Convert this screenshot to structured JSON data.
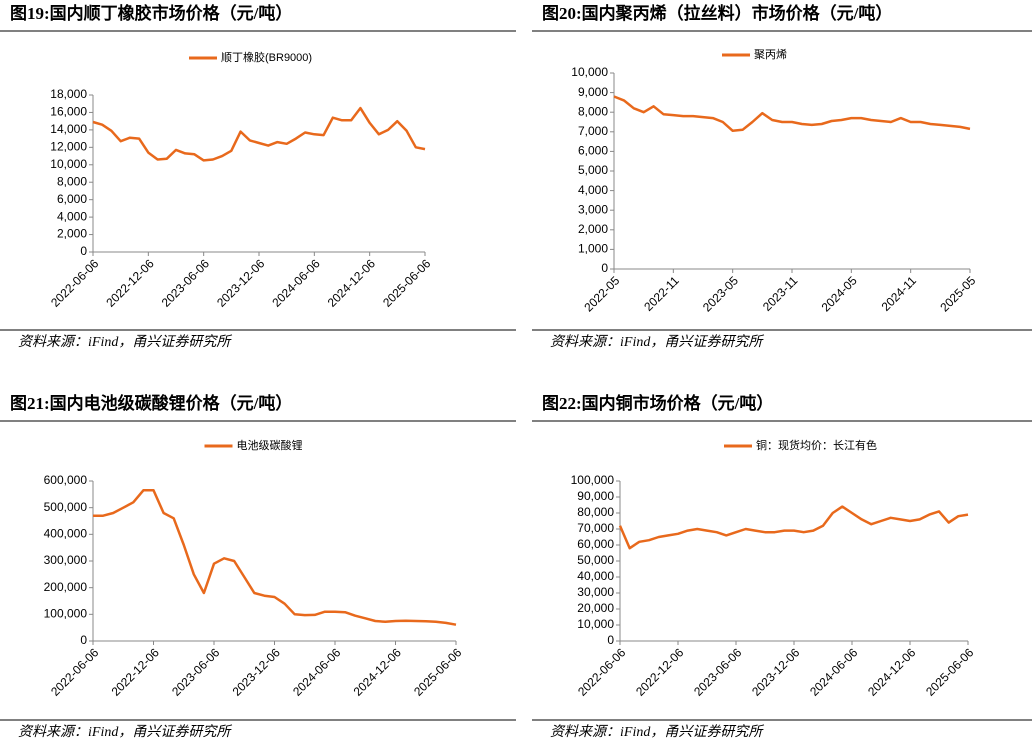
{
  "chart_data": [
    {
      "type": "line",
      "title": "图19:国内顺丁橡胶市场价格（元/吨）",
      "source": "资料来源：iFind，甬兴证券研究所",
      "categories": [
        "2022-06-06",
        null,
        null,
        null,
        null,
        null,
        "2022-12-06",
        null,
        null,
        null,
        null,
        null,
        "2023-06-06",
        null,
        null,
        null,
        null,
        null,
        "2023-12-06",
        null,
        null,
        null,
        null,
        null,
        "2024-06-06",
        null,
        null,
        null,
        null,
        null,
        "2024-12-06",
        null,
        null,
        null,
        null,
        null,
        "2025-06-06"
      ],
      "series": [
        {
          "name": "顺丁橡胶(BR9000)",
          "color": "#e8691c",
          "values": [
            14900,
            14600,
            13900,
            12700,
            13100,
            13000,
            11400,
            10600,
            10700,
            11700,
            11300,
            11200,
            10500,
            10600,
            11000,
            11600,
            13800,
            12800,
            12500,
            12200,
            12600,
            12400,
            13000,
            13700,
            13500,
            13400,
            15400,
            15100,
            15100,
            16500,
            14800,
            13500,
            14000,
            15000,
            13900,
            12000,
            11800
          ]
        }
      ],
      "ylim": [
        0,
        18000
      ],
      "yticks": [
        0,
        {
          "value": 2000,
          "label": "2,000"
        },
        {
          "value": 4000,
          "label": "4,000"
        },
        {
          "value": 6000,
          "label": "6,000"
        },
        {
          "value": 8000,
          "label": "8,000"
        },
        {
          "value": 10000,
          "label": "10,000"
        },
        {
          "value": 12000,
          "label": "12,000"
        },
        {
          "value": 14000,
          "label": "14,000"
        },
        {
          "value": 16000,
          "label": "16,000"
        },
        {
          "value": 18000,
          "label": "18,000"
        }
      ]
    },
    {
      "type": "line",
      "title": "图20:国内聚丙烯（拉丝料）市场价格（元/吨）",
      "source": "资料来源：iFind，甬兴证券研究所",
      "categories": [
        "2022-05",
        null,
        null,
        null,
        null,
        null,
        "2022-11",
        null,
        null,
        null,
        null,
        null,
        "2023-05",
        null,
        null,
        null,
        null,
        null,
        "2023-11",
        null,
        null,
        null,
        null,
        null,
        "2024-05",
        null,
        null,
        null,
        null,
        null,
        "2024-11",
        null,
        null,
        null,
        null,
        null,
        "2025-05"
      ],
      "series": [
        {
          "name": "聚丙烯",
          "color": "#e8691c",
          "values": [
            8800,
            8600,
            8200,
            8000,
            8300,
            7900,
            7850,
            7800,
            7800,
            7750,
            7700,
            7500,
            7050,
            7100,
            7500,
            7950,
            7600,
            7500,
            7500,
            7400,
            7350,
            7400,
            7550,
            7600,
            7700,
            7700,
            7600,
            7550,
            7500,
            7700,
            7500,
            7500,
            7400,
            7350,
            7300,
            7250,
            7150
          ]
        }
      ],
      "ylim": [
        0,
        10000
      ],
      "yticks": [
        0,
        {
          "value": 1000,
          "label": "1,000"
        },
        {
          "value": 2000,
          "label": "2,000"
        },
        {
          "value": 3000,
          "label": "3,000"
        },
        {
          "value": 4000,
          "label": "4,000"
        },
        {
          "value": 5000,
          "label": "5,000"
        },
        {
          "value": 6000,
          "label": "6,000"
        },
        {
          "value": 7000,
          "label": "7,000"
        },
        {
          "value": 8000,
          "label": "8,000"
        },
        {
          "value": 9000,
          "label": "9,000"
        },
        {
          "value": 10000,
          "label": "10,000"
        }
      ]
    },
    {
      "type": "line",
      "title": "图21:国内电池级碳酸锂价格（元/吨）",
      "source": "资料来源：iFind，甬兴证券研究所",
      "categories": [
        "2022-06-06",
        null,
        null,
        null,
        null,
        null,
        "2022-12-06",
        null,
        null,
        null,
        null,
        null,
        "2023-06-06",
        null,
        null,
        null,
        null,
        null,
        "2023-12-06",
        null,
        null,
        null,
        null,
        null,
        "2024-06-06",
        null,
        null,
        null,
        null,
        null,
        "2024-12-06",
        null,
        null,
        null,
        null,
        null,
        "2025-06-06"
      ],
      "series": [
        {
          "name": "电池级碳酸锂",
          "color": "#e8691c",
          "values": [
            470000,
            470000,
            480000,
            500000,
            520000,
            565000,
            565000,
            480000,
            460000,
            360000,
            250000,
            180000,
            290000,
            310000,
            300000,
            240000,
            180000,
            170000,
            165000,
            140000,
            100000,
            97000,
            98000,
            110000,
            110000,
            108000,
            95000,
            85000,
            75000,
            72000,
            75000,
            76000,
            75000,
            74000,
            72000,
            68000,
            61000
          ]
        }
      ],
      "ylim": [
        0,
        600000
      ],
      "yticks": [
        0,
        {
          "value": 100000,
          "label": "100,000"
        },
        {
          "value": 200000,
          "label": "200,000"
        },
        {
          "value": 300000,
          "label": "300,000"
        },
        {
          "value": 400000,
          "label": "400,000"
        },
        {
          "value": 500000,
          "label": "500,000"
        },
        {
          "value": 600000,
          "label": "600,000"
        }
      ]
    },
    {
      "type": "line",
      "title": "图22:国内铜市场价格（元/吨）",
      "source": "资料来源：iFind，甬兴证券研究所",
      "categories": [
        "2022-06-06",
        null,
        null,
        null,
        null,
        null,
        "2022-12-06",
        null,
        null,
        null,
        null,
        null,
        "2023-06-06",
        null,
        null,
        null,
        null,
        null,
        "2023-12-06",
        null,
        null,
        null,
        null,
        null,
        "2024-06-06",
        null,
        null,
        null,
        null,
        null,
        "2024-12-06",
        null,
        null,
        null,
        null,
        null,
        "2025-06-06"
      ],
      "series": [
        {
          "name": "铜：现货均价：长江有色",
          "color": "#e8691c",
          "values": [
            72000,
            58000,
            62000,
            63000,
            65000,
            66000,
            67000,
            69000,
            70000,
            69000,
            68000,
            66000,
            68000,
            70000,
            69000,
            68000,
            68000,
            69000,
            69000,
            68000,
            69000,
            72000,
            80000,
            84000,
            80000,
            76000,
            73000,
            75000,
            77000,
            76000,
            75000,
            76000,
            79000,
            81000,
            74000,
            78000,
            79000
          ]
        }
      ],
      "ylim": [
        0,
        100000
      ],
      "yticks": [
        0,
        {
          "value": 10000,
          "label": "10,000"
        },
        {
          "value": 20000,
          "label": "20,000"
        },
        {
          "value": 30000,
          "label": "30,000"
        },
        {
          "value": 40000,
          "label": "40,000"
        },
        {
          "value": 50000,
          "label": "50,000"
        },
        {
          "value": 60000,
          "label": "60,000"
        },
        {
          "value": 70000,
          "label": "70,000"
        },
        {
          "value": 80000,
          "label": "80,000"
        },
        {
          "value": 90000,
          "label": "90,000"
        },
        {
          "value": 100000,
          "label": "100,000"
        }
      ]
    }
  ]
}
